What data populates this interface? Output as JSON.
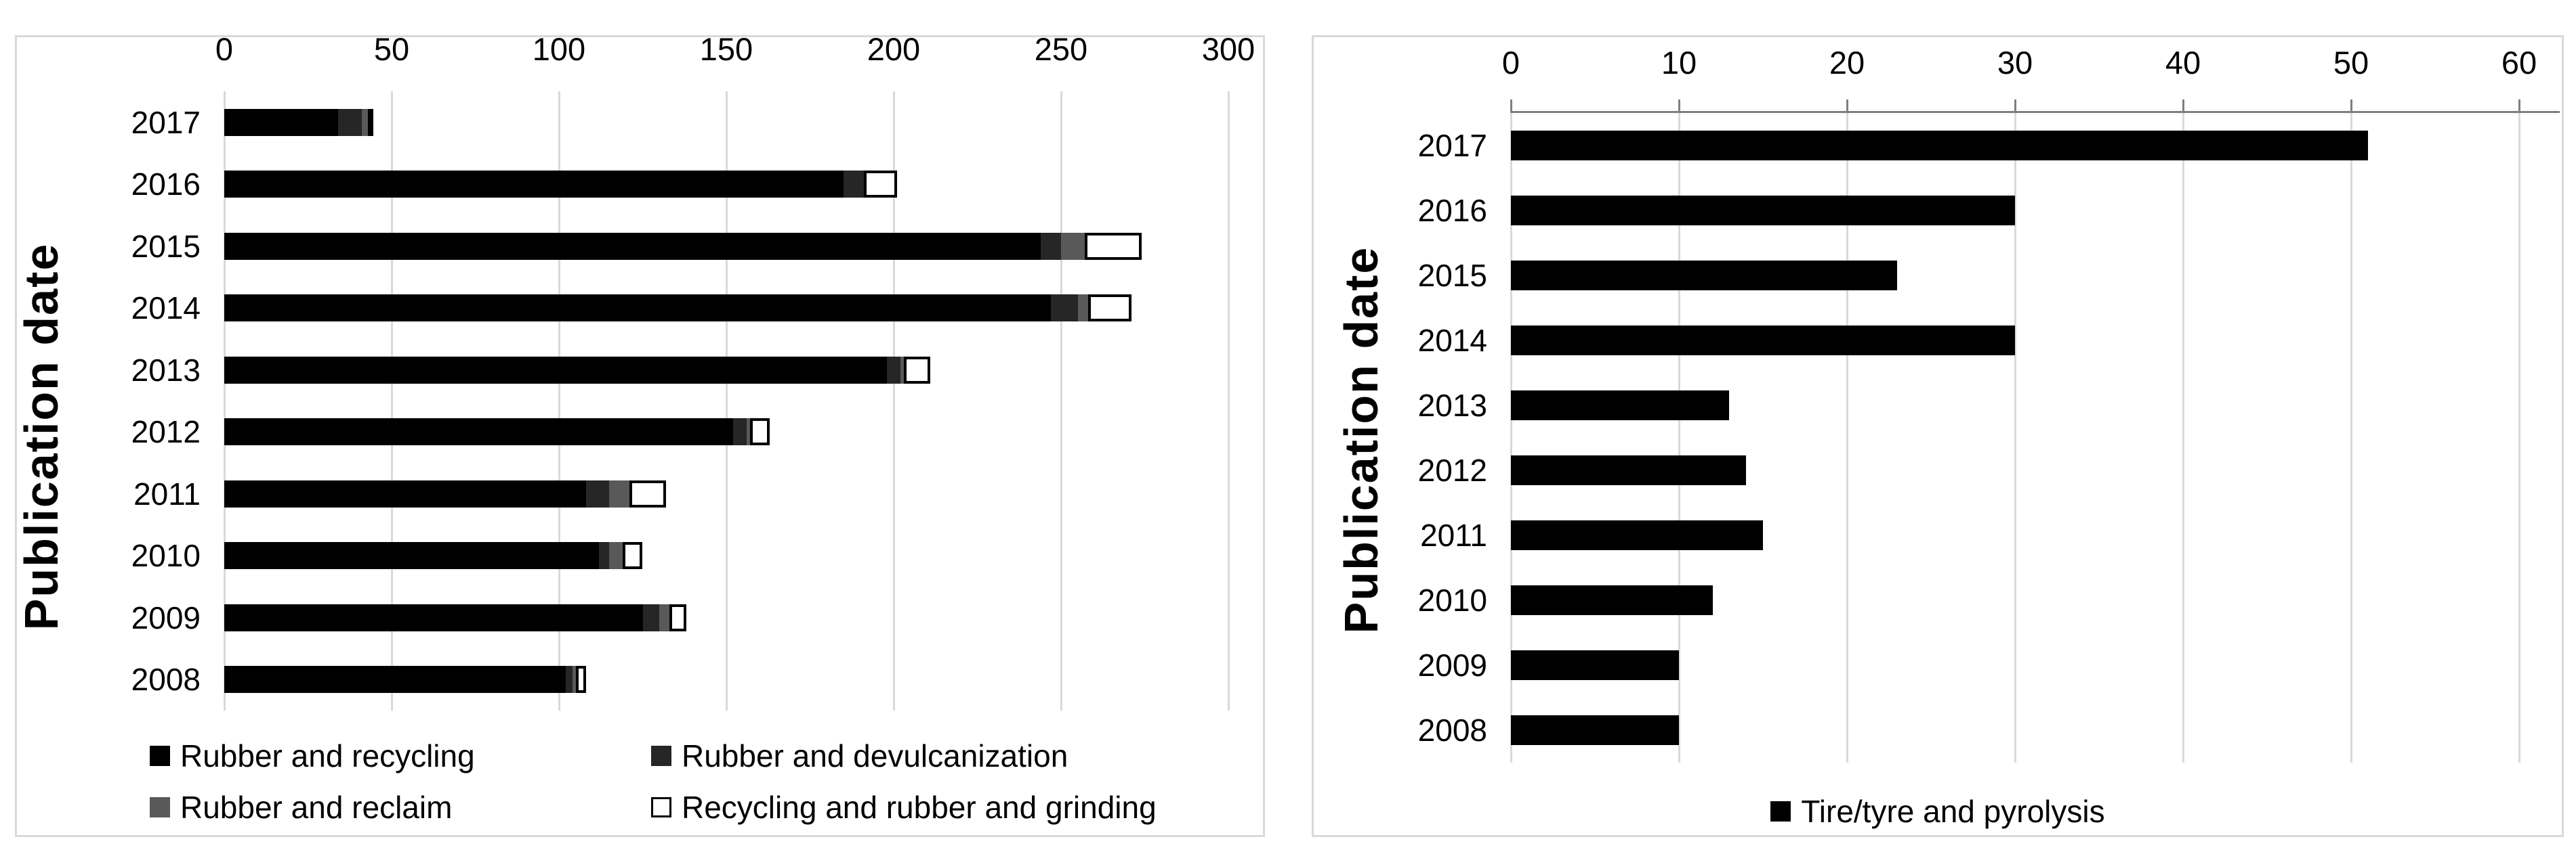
{
  "colors": {
    "background": "#ffffff",
    "panel_border": "#d9d9d9",
    "gridline": "#d9d9d9",
    "axis_line": "#7f7f7f",
    "text": "#000000"
  },
  "chart_data": [
    {
      "type": "bar",
      "orientation": "horizontal",
      "stacked": true,
      "title": "",
      "xlabel": "",
      "ylabel": "Publication date",
      "categories": [
        "2017",
        "2016",
        "2015",
        "2014",
        "2013",
        "2012",
        "2011",
        "2010",
        "2009",
        "2008"
      ],
      "series": [
        {
          "name": "Rubber and recycling",
          "color": "#000000",
          "values": [
            34,
            185,
            244,
            247,
            198,
            152,
            108,
            112,
            125,
            102
          ]
        },
        {
          "name": "Rubber and devulcanization",
          "color": "#262626",
          "values": [
            7,
            6,
            6,
            8,
            4,
            4,
            7,
            3,
            5,
            2
          ]
        },
        {
          "name": "Rubber and reclaim",
          "color": "#595959",
          "values": [
            2,
            0,
            7,
            3,
            1,
            1,
            6,
            4,
            3,
            1
          ]
        },
        {
          "name": "Recycling and rubber and grinding",
          "color": "#ffffff",
          "border": "#000000",
          "values": [
            1,
            10,
            17,
            13,
            8,
            6,
            11,
            6,
            5,
            3
          ]
        }
      ],
      "totals": [
        44,
        201,
        274,
        271,
        211,
        163,
        132,
        125,
        138,
        108
      ],
      "xlim": [
        0,
        300
      ],
      "xticks": [
        0,
        50,
        100,
        150,
        200,
        250,
        300
      ],
      "grid": true,
      "axis_line_top": false,
      "legend_position": "bottom-two-columns"
    },
    {
      "type": "bar",
      "orientation": "horizontal",
      "stacked": false,
      "title": "",
      "xlabel": "",
      "ylabel": "Publication date",
      "categories": [
        "2017",
        "2016",
        "2015",
        "2014",
        "2013",
        "2012",
        "2011",
        "2010",
        "2009",
        "2008"
      ],
      "series": [
        {
          "name": "Tire/tyre  and pyrolysis",
          "color": "#000000",
          "values": [
            51,
            30,
            23,
            30,
            13,
            14,
            15,
            12,
            10,
            10
          ]
        }
      ],
      "xlim": [
        0,
        60
      ],
      "xticks": [
        0,
        10,
        20,
        30,
        40,
        50,
        60
      ],
      "grid": true,
      "axis_line_top": true,
      "legend_position": "bottom-center"
    }
  ]
}
